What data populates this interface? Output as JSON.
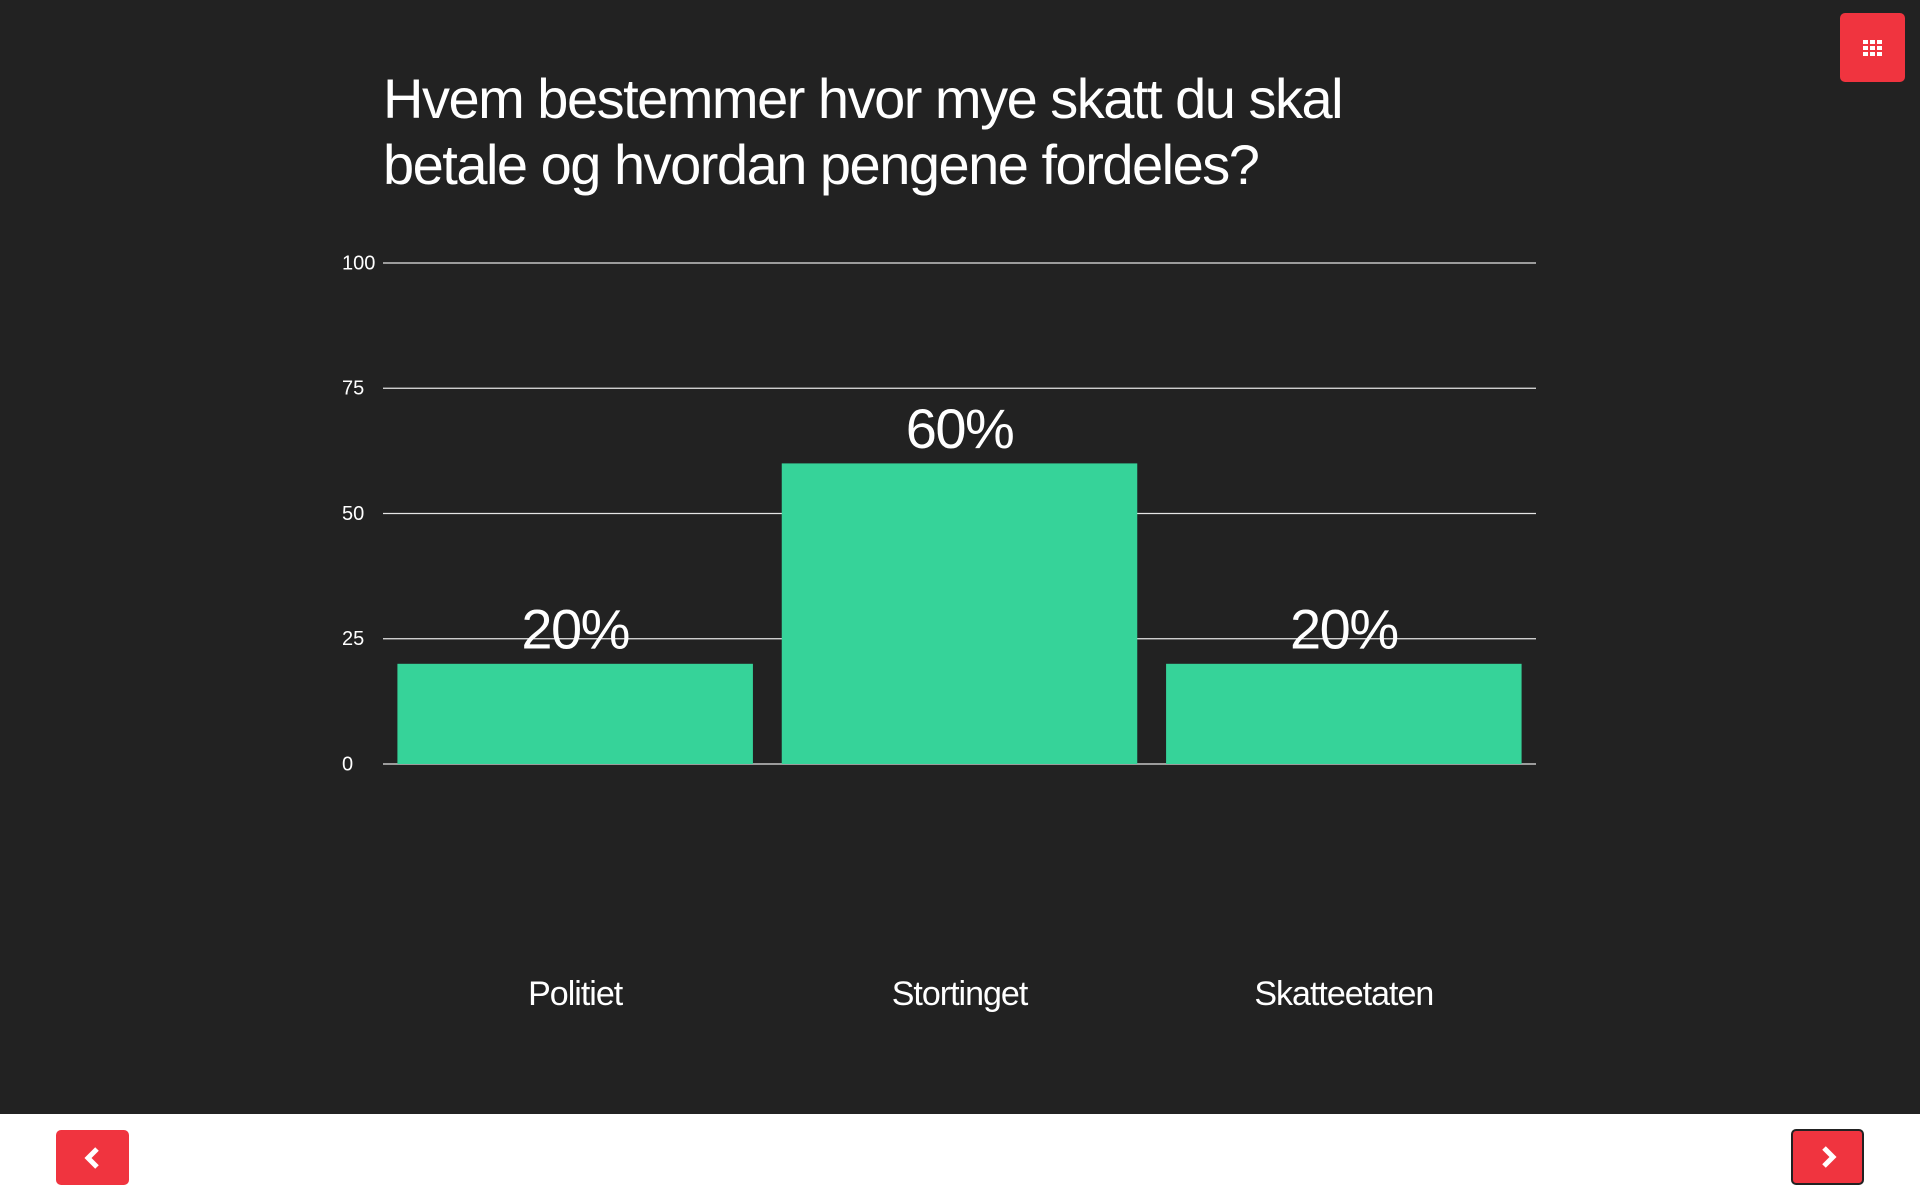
{
  "chart_data": {
    "type": "bar",
    "title": "Hvem bestemmer hvor mye skatt du skal betale og hvordan pengene fordeles?",
    "categories": [
      "Politiet",
      "Stortinget",
      "Skatteetaten"
    ],
    "values": [
      20,
      60,
      20
    ],
    "value_labels": [
      "20%",
      "60%",
      "20%"
    ],
    "color": "#36d399",
    "ylim": [
      0,
      100
    ],
    "yticks": [
      0,
      25,
      50,
      75,
      100
    ],
    "grid": true
  }
}
